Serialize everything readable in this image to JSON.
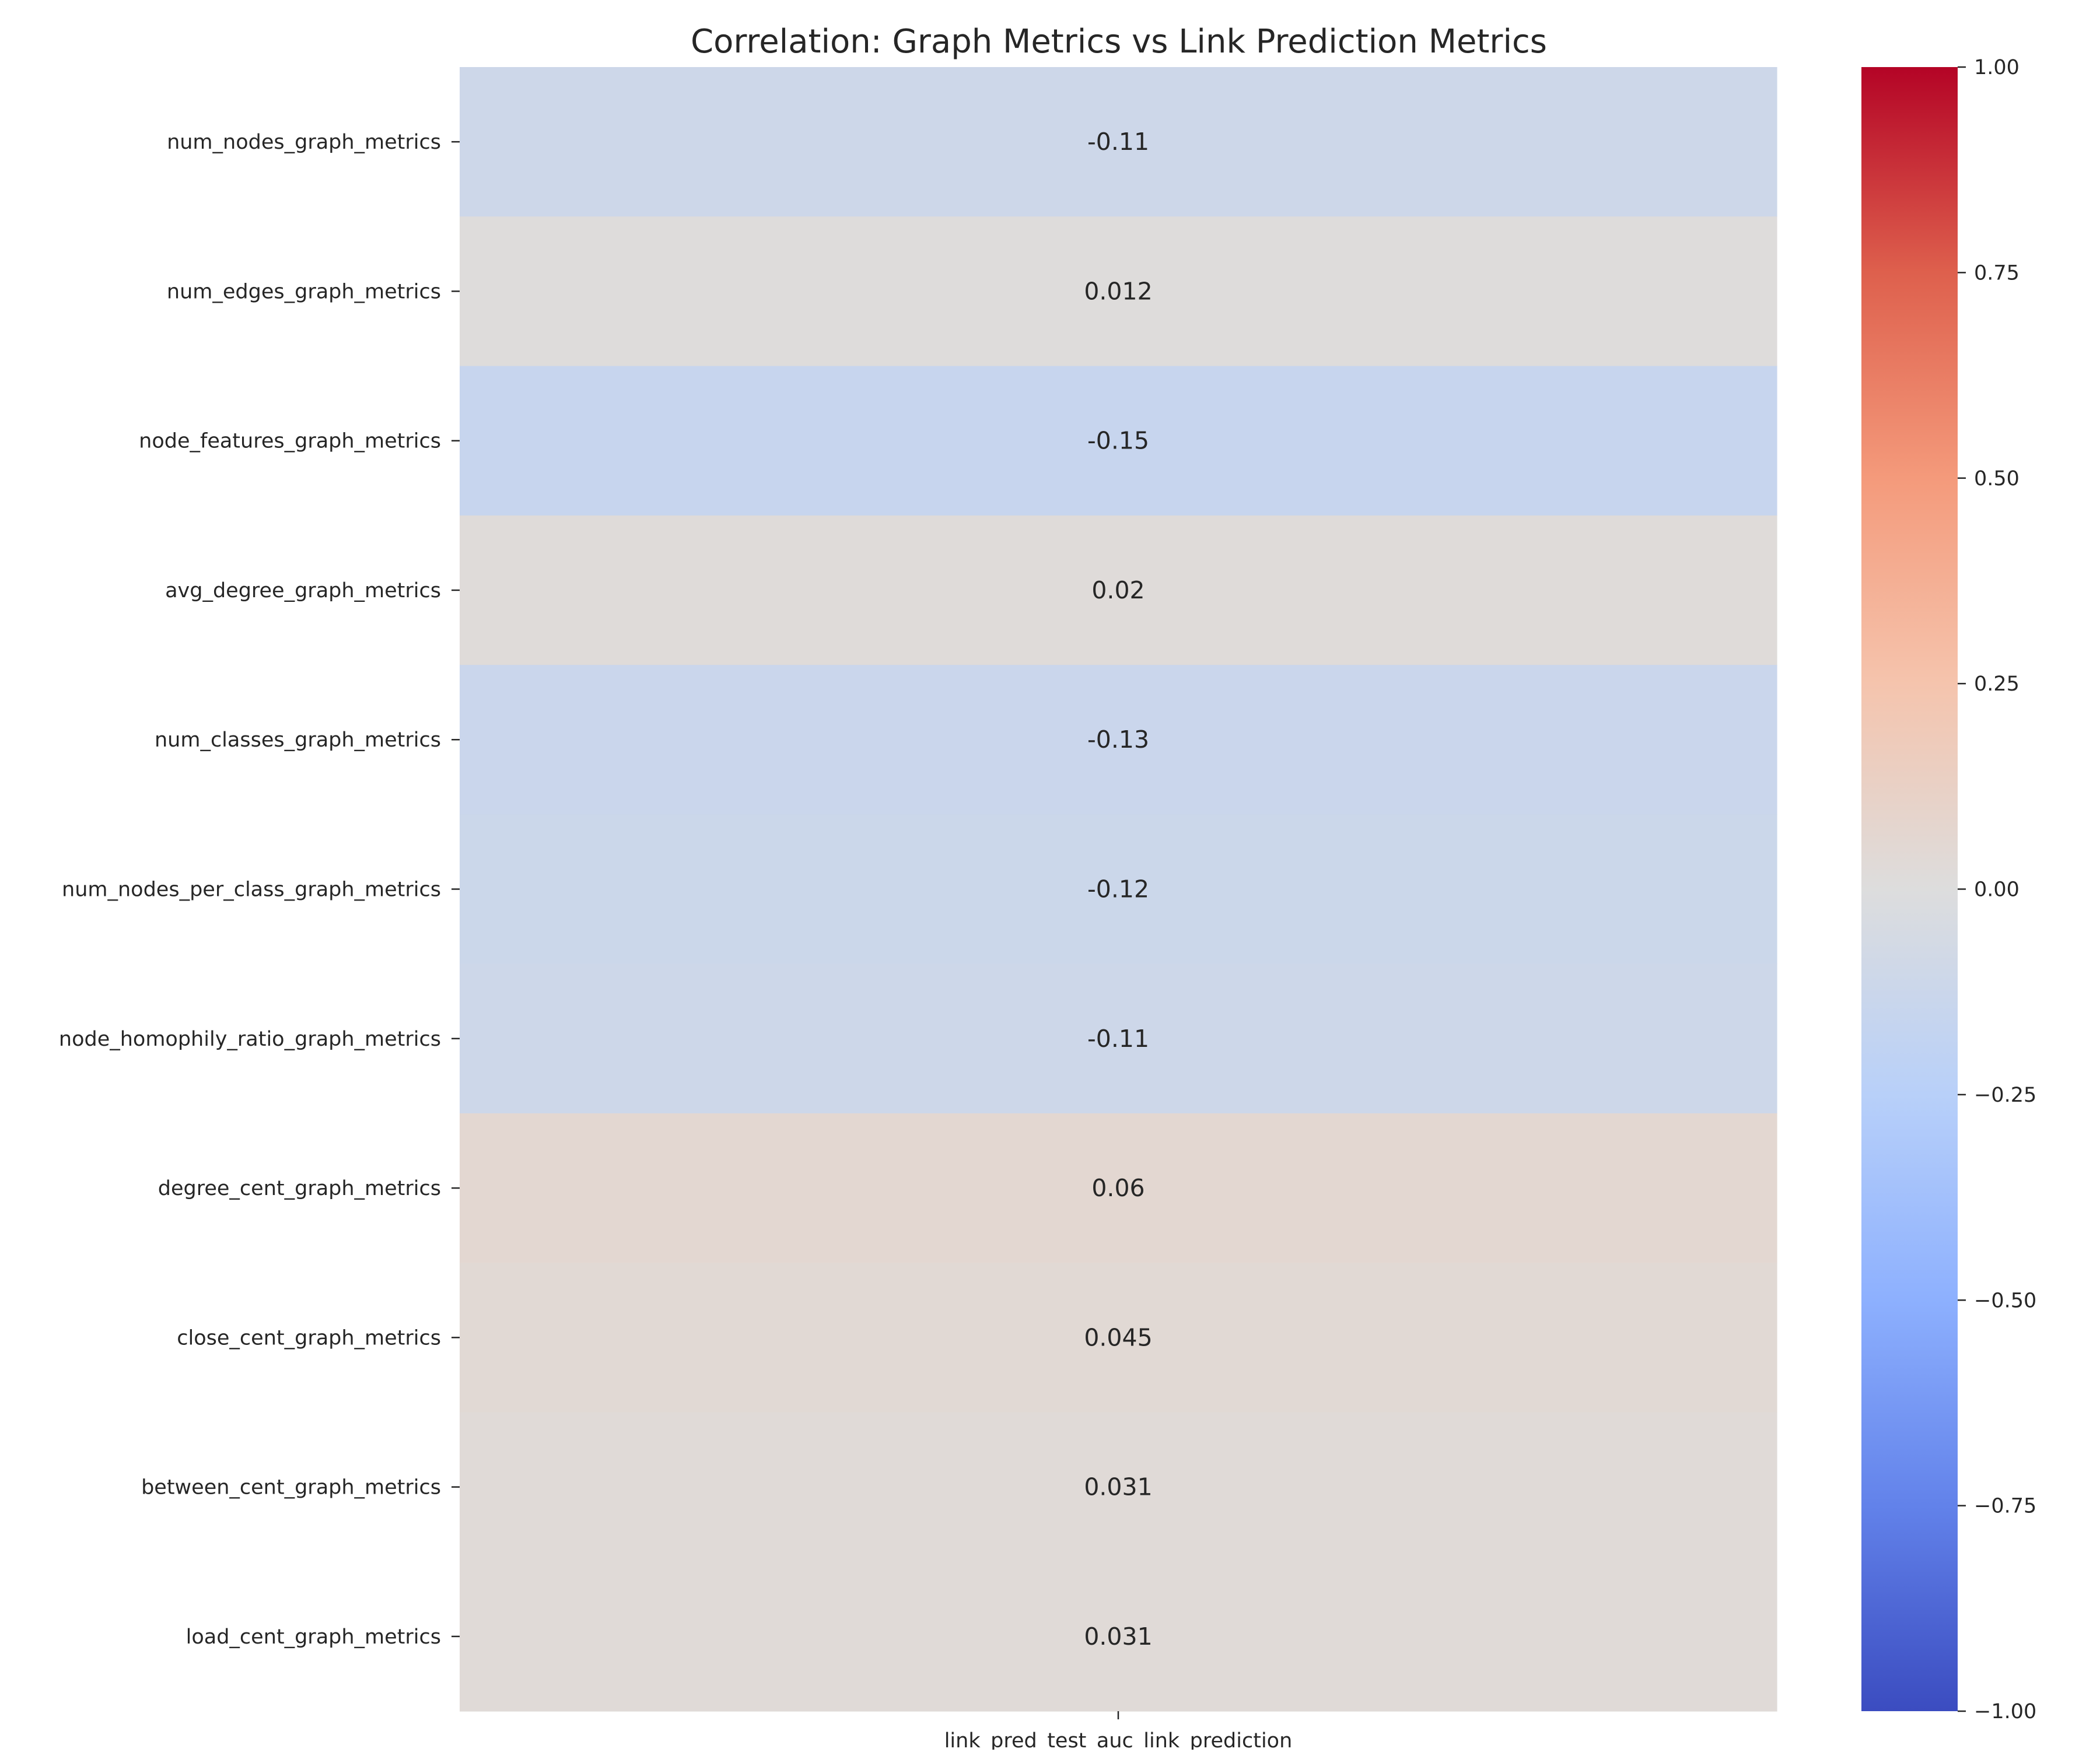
{
  "chart_data": {
    "type": "heatmap",
    "title": "Correlation: Graph Metrics vs Link Prediction Metrics",
    "rows": [
      "num_nodes_graph_metrics",
      "num_edges_graph_metrics",
      "node_features_graph_metrics",
      "avg_degree_graph_metrics",
      "num_classes_graph_metrics",
      "num_nodes_per_class_graph_metrics",
      "node_homophily_ratio_graph_metrics",
      "degree_cent_graph_metrics",
      "close_cent_graph_metrics",
      "between_cent_graph_metrics",
      "load_cent_graph_metrics"
    ],
    "columns": [
      "link_pred_test_auc_link_prediction"
    ],
    "values": [
      [
        -0.11
      ],
      [
        0.012
      ],
      [
        -0.15
      ],
      [
        0.02
      ],
      [
        -0.13
      ],
      [
        -0.12
      ],
      [
        -0.11
      ],
      [
        0.06
      ],
      [
        0.045
      ],
      [
        0.031
      ],
      [
        0.031
      ]
    ],
    "cell_labels": [
      "-0.11",
      "0.012",
      "-0.15",
      "0.02",
      "-0.13",
      "-0.12",
      "-0.11",
      "0.06",
      "0.045",
      "0.031",
      "0.031"
    ],
    "colormap": "coolwarm",
    "vmin": -1.0,
    "vmax": 1.0,
    "colorbar_ticks": [
      1.0,
      0.75,
      0.5,
      0.25,
      0.0,
      -0.25,
      -0.5,
      -0.75,
      -1.0
    ],
    "colorbar_tick_labels": [
      "1.00",
      "0.75",
      "0.50",
      "0.25",
      "0.00",
      "−0.25",
      "−0.50",
      "−0.75",
      "−1.00"
    ]
  }
}
